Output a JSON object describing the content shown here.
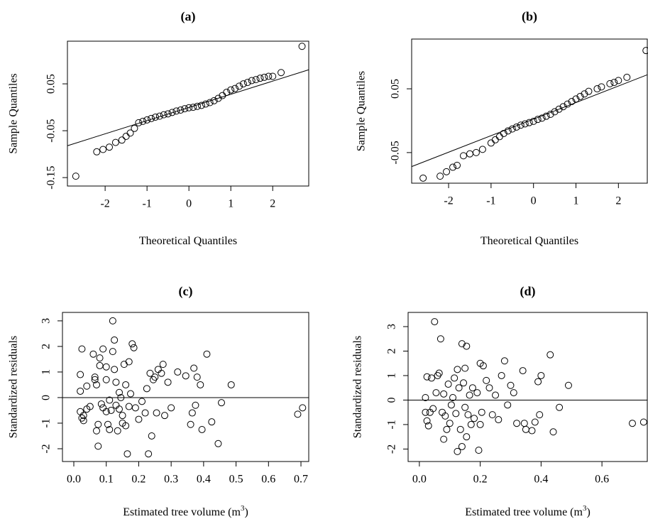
{
  "chart_data": [
    {
      "type": "scatter",
      "title": "(a)",
      "x_label": "Theoretical Quantiles",
      "y_label": "Sample Quantiles",
      "x": [
        -2.7,
        -2.2,
        -2.05,
        -1.9,
        -1.75,
        -1.6,
        -1.5,
        -1.4,
        -1.3,
        -1.2,
        -1.1,
        -1.0,
        -0.9,
        -0.8,
        -0.7,
        -0.6,
        -0.5,
        -0.4,
        -0.3,
        -0.2,
        -0.1,
        0,
        0.1,
        0.2,
        0.3,
        0.4,
        0.5,
        0.6,
        0.7,
        0.8,
        0.9,
        1.0,
        1.1,
        1.2,
        1.3,
        1.4,
        1.5,
        1.6,
        1.7,
        1.8,
        1.9,
        2.0,
        2.2,
        2.7
      ],
      "y": [
        -0.147,
        -0.095,
        -0.09,
        -0.085,
        -0.075,
        -0.07,
        -0.062,
        -0.055,
        -0.045,
        -0.033,
        -0.03,
        -0.027,
        -0.024,
        -0.021,
        -0.019,
        -0.016,
        -0.014,
        -0.011,
        -0.008,
        -0.006,
        -0.003,
        -0.001,
        0.0,
        0.002,
        0.004,
        0.007,
        0.01,
        0.014,
        0.019,
        0.025,
        0.032,
        0.037,
        0.04,
        0.045,
        0.05,
        0.053,
        0.057,
        0.059,
        0.062,
        0.064,
        0.066,
        0.066,
        0.074,
        0.13
      ],
      "ref_line": {
        "x": [
          -2.9,
          2.86
        ],
        "y": [
          -0.082,
          0.08
        ]
      },
      "xlim": [
        -2.9,
        2.86
      ],
      "ylim": [
        -0.168,
        0.141
      ],
      "xticks": [
        -2,
        -1,
        0,
        1,
        2
      ],
      "yticks": [
        -0.15,
        -0.05,
        0.05
      ]
    },
    {
      "type": "scatter",
      "title": "(b)",
      "x_label": "Theoretical Quantiles",
      "y_label": "Sample Quantiles",
      "x": [
        -2.6,
        -2.2,
        -2.05,
        -1.9,
        -1.8,
        -1.65,
        -1.5,
        -1.35,
        -1.2,
        -1.0,
        -0.9,
        -0.8,
        -0.7,
        -0.6,
        -0.5,
        -0.4,
        -0.3,
        -0.2,
        -0.1,
        0,
        0.1,
        0.2,
        0.3,
        0.4,
        0.5,
        0.6,
        0.7,
        0.8,
        0.9,
        1.0,
        1.1,
        1.2,
        1.3,
        1.5,
        1.6,
        1.8,
        1.9,
        2.0,
        2.2,
        2.65
      ],
      "y": [
        -0.09,
        -0.087,
        -0.08,
        -0.073,
        -0.07,
        -0.055,
        -0.052,
        -0.05,
        -0.045,
        -0.035,
        -0.03,
        -0.025,
        -0.02,
        -0.016,
        -0.013,
        -0.01,
        -0.007,
        -0.005,
        -0.003,
        -0.001,
        0.002,
        0.004,
        0.007,
        0.01,
        0.014,
        0.018,
        0.022,
        0.026,
        0.03,
        0.034,
        0.038,
        0.042,
        0.046,
        0.05,
        0.053,
        0.058,
        0.06,
        0.063,
        0.068,
        0.11
      ],
      "ref_line": {
        "x": [
          -2.87,
          2.68
        ],
        "y": [
          -0.072,
          0.072
        ]
      },
      "xlim": [
        -2.87,
        2.68
      ],
      "ylim": [
        -0.098,
        0.128
      ],
      "xticks": [
        -2,
        -1,
        0,
        1,
        2
      ],
      "yticks": [
        -0.05,
        0.05
      ]
    },
    {
      "type": "scatter",
      "title": "(c)",
      "x_label": "Estimated tree volume (m",
      "x_label_superscript": "3",
      "x_label_suffix": ")",
      "y_label": "Standardized residuals",
      "x": [
        0.02,
        0.02,
        0.025,
        0.02,
        0.025,
        0.03,
        0.03,
        0.04,
        0.04,
        0.05,
        0.06,
        0.065,
        0.065,
        0.07,
        0.07,
        0.075,
        0.075,
        0.08,
        0.08,
        0.085,
        0.09,
        0.09,
        0.1,
        0.1,
        0.1,
        0.105,
        0.11,
        0.11,
        0.115,
        0.12,
        0.12,
        0.125,
        0.125,
        0.13,
        0.13,
        0.135,
        0.14,
        0.14,
        0.145,
        0.15,
        0.15,
        0.155,
        0.16,
        0.16,
        0.165,
        0.17,
        0.17,
        0.175,
        0.18,
        0.185,
        0.19,
        0.2,
        0.21,
        0.22,
        0.225,
        0.23,
        0.235,
        0.24,
        0.245,
        0.25,
        0.255,
        0.26,
        0.27,
        0.275,
        0.28,
        0.29,
        0.3,
        0.32,
        0.345,
        0.36,
        0.365,
        0.37,
        0.375,
        0.38,
        0.39,
        0.395,
        0.41,
        0.425,
        0.445,
        0.455,
        0.485,
        0.69,
        0.705
      ],
      "y": [
        0.25,
        0.9,
        1.9,
        -0.55,
        -0.8,
        -0.7,
        -0.9,
        -0.45,
        0.45,
        -0.35,
        1.7,
        0.8,
        0.7,
        0.5,
        -1.3,
        -1.05,
        -1.9,
        1.55,
        1.25,
        -0.25,
        1.9,
        -0.4,
        -0.55,
        0.7,
        1.2,
        -1.05,
        -0.1,
        -1.25,
        -0.5,
        3.0,
        1.8,
        2.25,
        1.1,
        0.6,
        -0.3,
        -1.3,
        0.2,
        -0.45,
        0.0,
        -0.7,
        -1.0,
        1.3,
        -1.1,
        0.5,
        -2.2,
        1.4,
        -0.35,
        0.15,
        2.1,
        1.95,
        -0.4,
        -0.85,
        -0.15,
        -0.6,
        0.35,
        -2.2,
        0.95,
        -1.5,
        0.7,
        0.8,
        -0.6,
        1.1,
        0.95,
        1.3,
        -0.7,
        0.6,
        -0.4,
        1.0,
        0.85,
        -1.05,
        -0.6,
        1.15,
        -0.3,
        0.8,
        0.5,
        -1.25,
        1.7,
        -0.95,
        -1.8,
        -0.2,
        0.5,
        -0.65,
        -0.4
      ],
      "hline": 0,
      "xlim": [
        -0.035,
        0.724
      ],
      "ylim": [
        -2.5,
        3.33
      ],
      "xticks": [
        {
          "value": 0,
          "label": "0.0"
        },
        0.1,
        0.2,
        0.3,
        0.4,
        0.5,
        0.6,
        0.7
      ],
      "yticks": [
        -2,
        -1,
        0,
        1,
        2,
        3
      ]
    },
    {
      "type": "scatter",
      "title": "(d)",
      "x_label": "Estimated tree volume (m",
      "x_label_superscript": "3",
      "x_label_suffix": ")",
      "y_label": "Standardized residuals",
      "x": [
        0.02,
        0.02,
        0.025,
        0.025,
        0.03,
        0.035,
        0.04,
        0.045,
        0.05,
        0.055,
        0.06,
        0.065,
        0.07,
        0.075,
        0.08,
        0.08,
        0.085,
        0.09,
        0.095,
        0.1,
        0.105,
        0.11,
        0.115,
        0.12,
        0.125,
        0.125,
        0.13,
        0.135,
        0.14,
        0.14,
        0.145,
        0.15,
        0.15,
        0.155,
        0.155,
        0.16,
        0.165,
        0.17,
        0.175,
        0.18,
        0.19,
        0.195,
        0.2,
        0.2,
        0.205,
        0.21,
        0.22,
        0.23,
        0.24,
        0.25,
        0.26,
        0.27,
        0.28,
        0.29,
        0.3,
        0.31,
        0.32,
        0.34,
        0.345,
        0.35,
        0.37,
        0.38,
        0.39,
        0.395,
        0.4,
        0.43,
        0.44,
        0.46,
        0.49,
        0.7,
        0.737
      ],
      "y": [
        0.1,
        -0.5,
        -0.85,
        0.95,
        -1.05,
        -0.5,
        0.9,
        -0.35,
        3.2,
        0.3,
        1.0,
        1.1,
        2.5,
        -0.5,
        -1.6,
        0.25,
        -0.65,
        -1.2,
        0.65,
        -0.95,
        -0.2,
        0.1,
        0.9,
        -0.55,
        1.25,
        -2.1,
        0.5,
        -1.2,
        -1.9,
        2.3,
        0.7,
        -0.3,
        1.3,
        -1.5,
        2.2,
        -0.6,
        0.2,
        -1.0,
        0.5,
        -0.75,
        0.3,
        -2.05,
        1.5,
        -1.0,
        -0.5,
        1.4,
        0.8,
        0.5,
        -0.6,
        0.2,
        -0.8,
        1.0,
        1.6,
        -0.2,
        0.6,
        0.3,
        -0.95,
        1.2,
        -0.95,
        -1.2,
        -1.25,
        -0.9,
        0.75,
        -0.6,
        1.0,
        1.85,
        -1.3,
        -0.3,
        0.6,
        -0.95,
        -0.9
      ],
      "hline": 0,
      "xlim": [
        -0.037,
        0.749
      ],
      "ylim": [
        -2.51,
        3.58
      ],
      "xticks": [
        {
          "value": 0,
          "label": "0.0"
        },
        0.2,
        0.4,
        0.6
      ],
      "yticks": [
        -2,
        -1,
        0,
        1,
        2,
        3
      ]
    }
  ]
}
